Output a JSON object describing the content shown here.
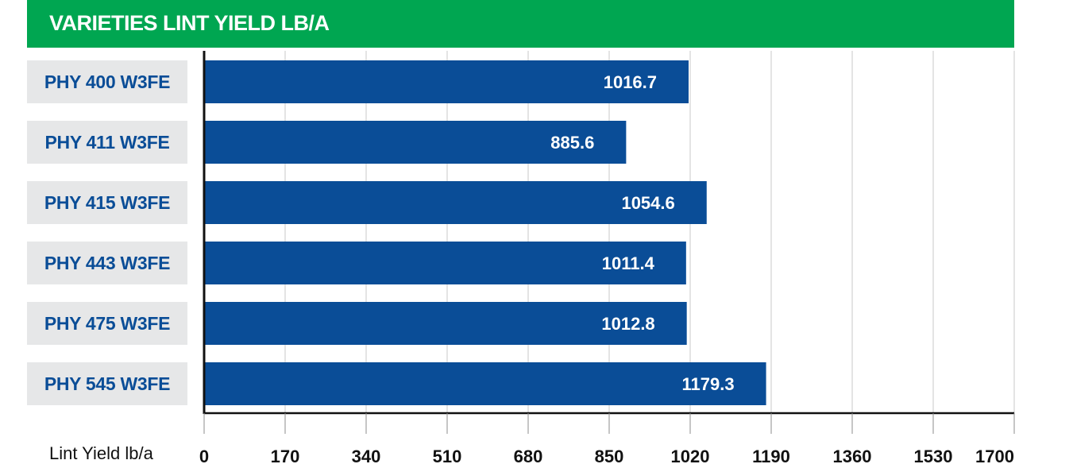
{
  "chart_data": {
    "type": "bar",
    "orientation": "horizontal",
    "title": "VARIETIES LINT YIELD LB/A",
    "categories": [
      "PHY 400 W3FE",
      "PHY 411 W3FE",
      "PHY 415 W3FE",
      "PHY 443 W3FE",
      "PHY 475 W3FE",
      "PHY 545 W3FE"
    ],
    "values": [
      1016.7,
      885.6,
      1054.6,
      1011.4,
      1012.8,
      1179.3
    ],
    "value_labels": [
      "1016.7",
      "885.6",
      "1054.6",
      "1011.4",
      "1012.8",
      "1179.3"
    ],
    "xlabel": "Lint Yield lb/a",
    "xlim": [
      0,
      1700
    ],
    "xticks": [
      0,
      170,
      340,
      510,
      680,
      850,
      1020,
      1190,
      1360,
      1530,
      1700
    ],
    "grid": true,
    "colors": {
      "title_bg": "#00a651",
      "bar": "#0a4d97",
      "category_bg": "#e6e7e8",
      "category_text": "#0a4d97",
      "bar_label": "#ffffff"
    }
  }
}
